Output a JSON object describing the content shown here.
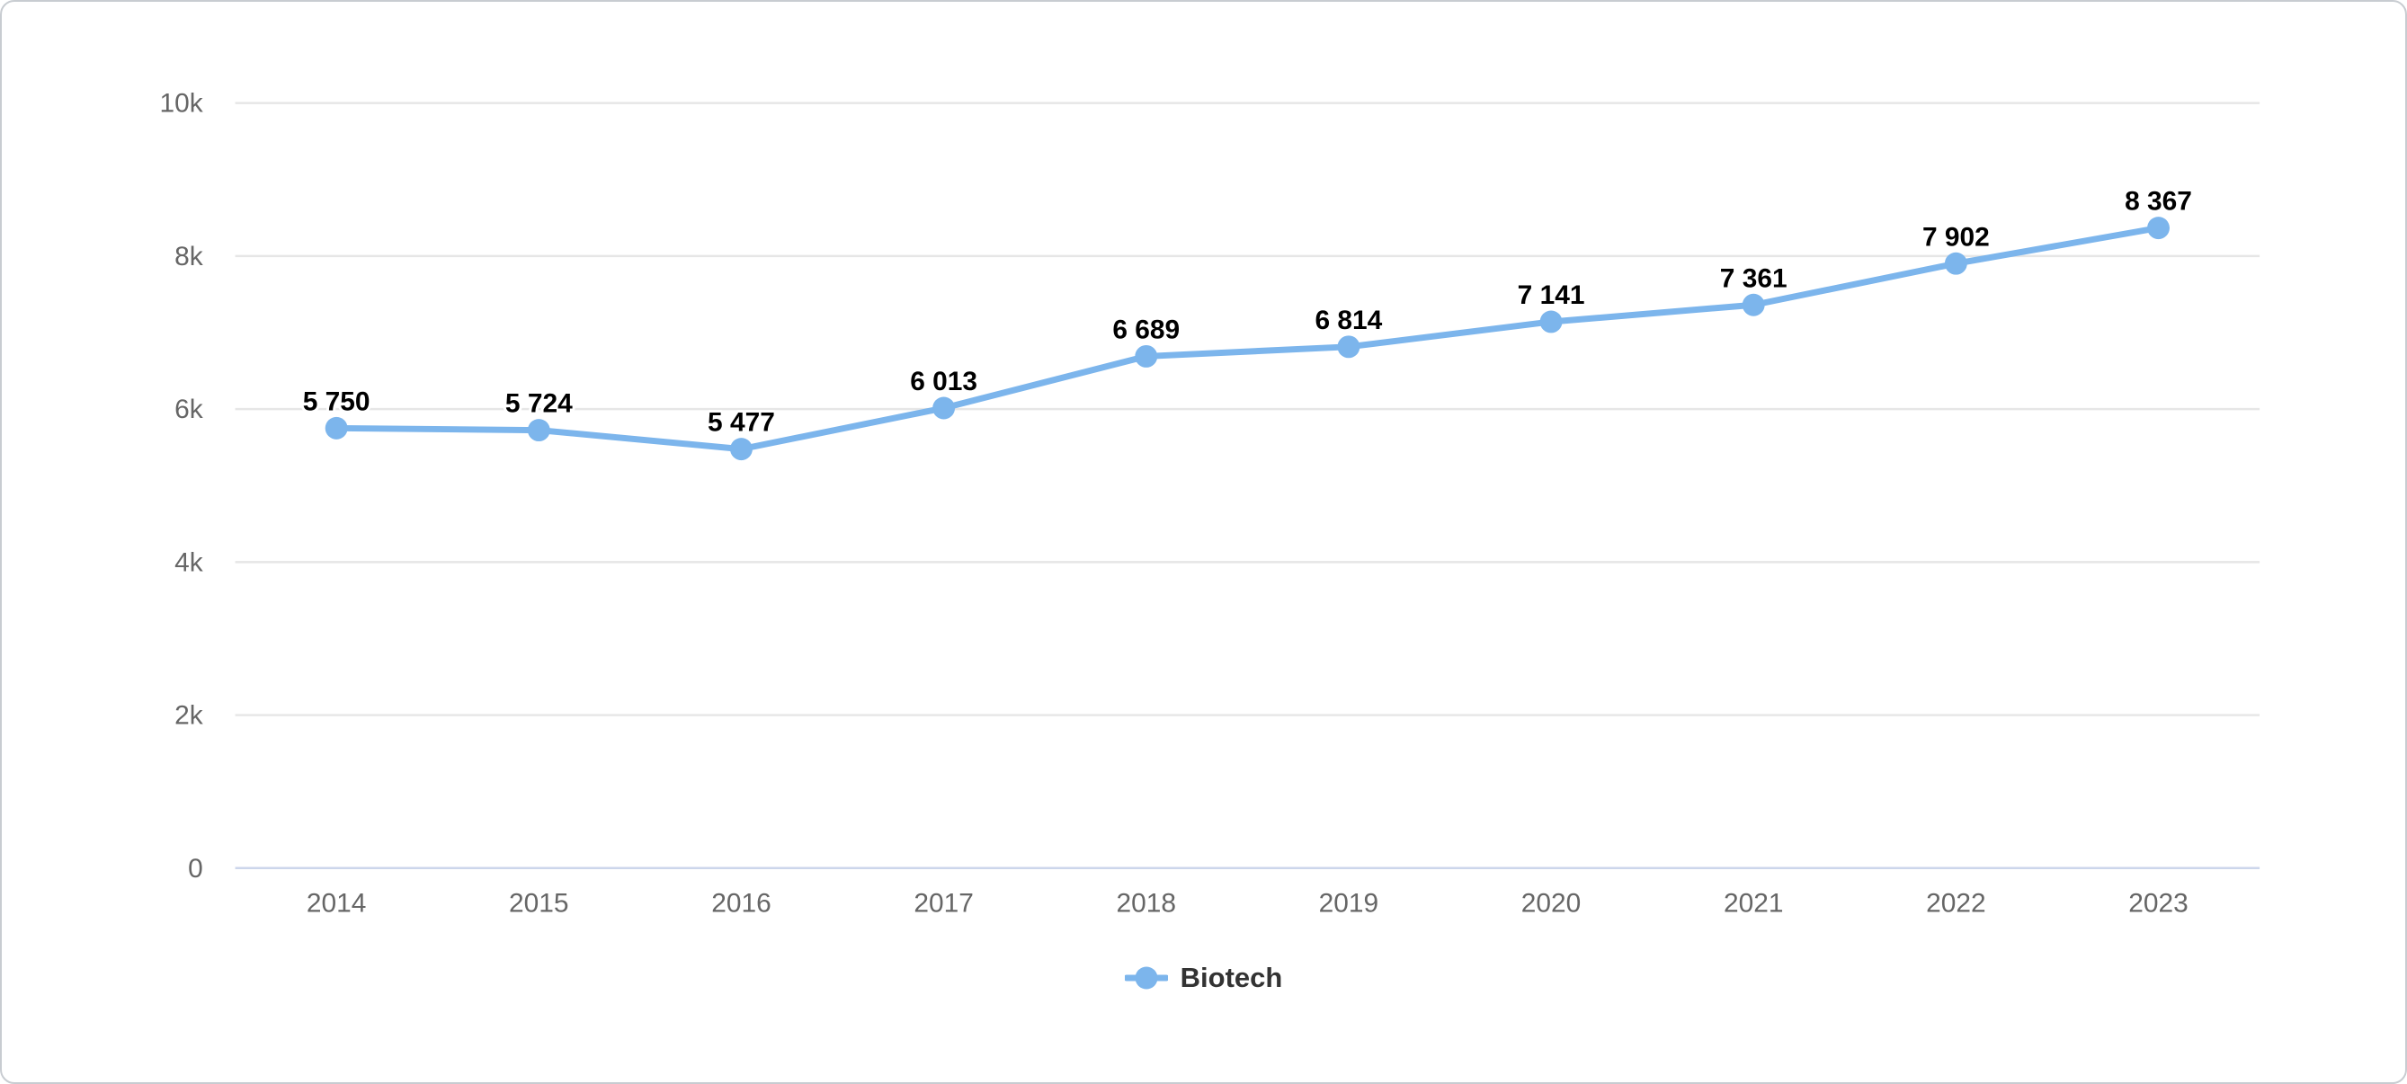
{
  "chart_data": {
    "type": "line",
    "title": "",
    "categories": [
      "2014",
      "2015",
      "2016",
      "2017",
      "2018",
      "2019",
      "2020",
      "2021",
      "2022",
      "2023"
    ],
    "series": [
      {
        "name": "Biotech",
        "values": [
          5750,
          5724,
          5477,
          6013,
          6689,
          6814,
          7141,
          7361,
          7902,
          8367
        ],
        "labels": [
          "5 750",
          "5 724",
          "5 477",
          "6 013",
          "6 689",
          "6 814",
          "7 141",
          "7 361",
          "7 902",
          "8 367"
        ]
      }
    ],
    "xlabel": "",
    "ylabel": "",
    "ylim": [
      0,
      10000
    ],
    "y_ticks": [
      {
        "value": 0,
        "label": "0"
      },
      {
        "value": 2000,
        "label": "2k"
      },
      {
        "value": 4000,
        "label": "4k"
      },
      {
        "value": 6000,
        "label": "6k"
      },
      {
        "value": 8000,
        "label": "8k"
      },
      {
        "value": 10000,
        "label": "10k"
      }
    ],
    "grid": true,
    "legend_position": "bottom-center",
    "colors": {
      "series": "#7cb5ec",
      "grid_line": "#e6e6e6",
      "axis_line": "#ccd6eb",
      "axis_text": "#666666",
      "data_label_text": "#000000",
      "legend_text": "#333333",
      "card_border": "#c8ccd1",
      "background": "#ffffff"
    }
  }
}
